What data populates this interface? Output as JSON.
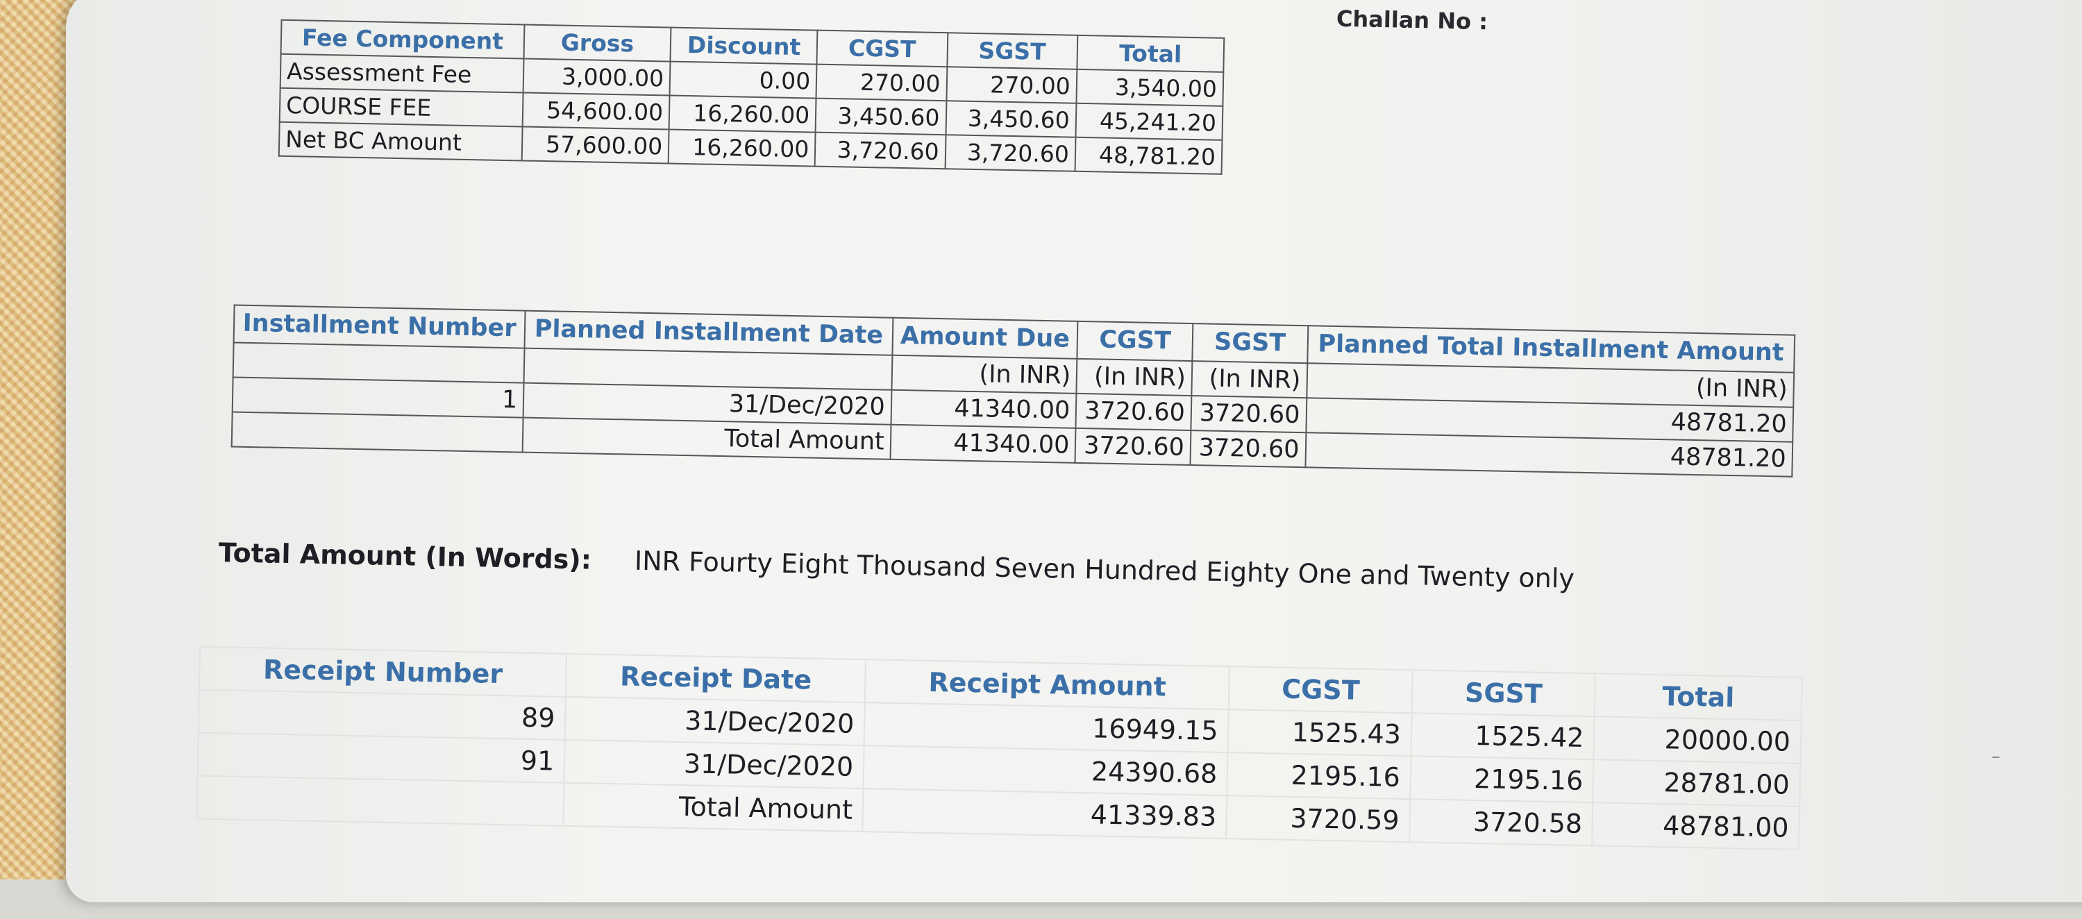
{
  "header": {
    "challan_label": "Challan No :"
  },
  "fee_table": {
    "headers": [
      "Fee Component",
      "Gross",
      "Discount",
      "CGST",
      "SGST",
      "Total"
    ],
    "rows": [
      [
        "Assessment Fee",
        "3,000.00",
        "0.00",
        "270.00",
        "270.00",
        "3,540.00"
      ],
      [
        "COURSE FEE",
        "54,600.00",
        "16,260.00",
        "3,450.60",
        "3,450.60",
        "45,241.20"
      ],
      [
        "Net BC Amount",
        "57,600.00",
        "16,260.00",
        "3,720.60",
        "3,720.60",
        "48,781.20"
      ]
    ]
  },
  "installment_table": {
    "headers": {
      "number": "Installment Number",
      "date": "Planned Installment Date",
      "amount_due": "Amount Due",
      "cgst": "CGST",
      "sgst": "SGST",
      "total": "Planned Total Installment Amount"
    },
    "units": {
      "amount_due": "(In INR)",
      "cgst": "(In INR)",
      "sgst": "(In INR)",
      "total": "(In INR)"
    },
    "rows": [
      {
        "number": "1",
        "date": "31/Dec/2020",
        "amount_due": "41340.00",
        "cgst": "3720.60",
        "sgst": "3720.60",
        "total": "48781.20"
      }
    ],
    "total_row": {
      "label": "Total Amount",
      "amount_due": "41340.00",
      "cgst": "3720.60",
      "sgst": "3720.60",
      "total": "48781.20"
    }
  },
  "total_in_words": {
    "label": "Total Amount (In Words):",
    "value": "INR Fourty Eight Thousand Seven Hundred Eighty One and Twenty only"
  },
  "receipt_table": {
    "headers": [
      "Receipt Number",
      "Receipt Date",
      "Receipt Amount",
      "CGST",
      "SGST",
      "Total"
    ],
    "rows": [
      [
        "89",
        "31/Dec/2020",
        "16949.15",
        "1525.43",
        "1525.42",
        "20000.00"
      ],
      [
        "91",
        "31/Dec/2020",
        "24390.68",
        "2195.16",
        "2195.16",
        "28781.00"
      ]
    ],
    "total_row": [
      "",
      "Total Amount",
      "41339.83",
      "3720.59",
      "3720.58",
      "48781.00"
    ]
  }
}
